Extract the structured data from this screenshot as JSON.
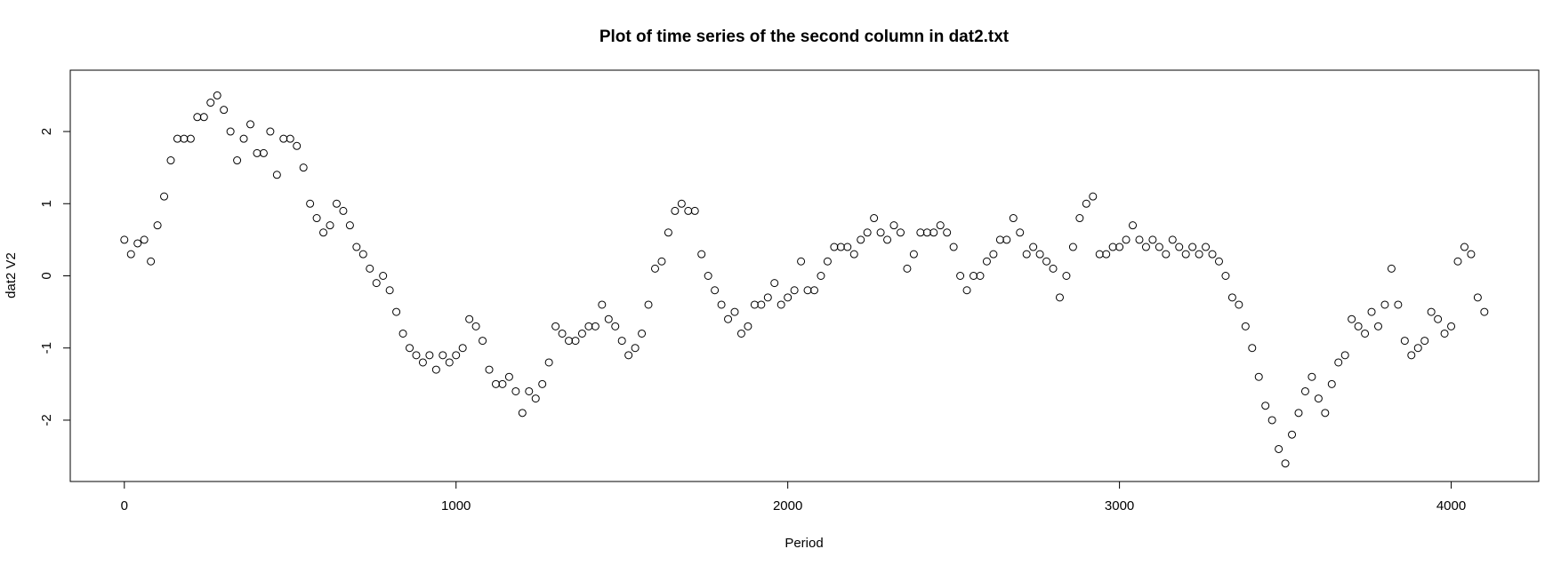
{
  "chart_data": {
    "type": "scatter",
    "title": "Plot of time series of the second column in dat2.txt",
    "x_label": "Period",
    "y_label": "dat2 V2",
    "xlim": [
      -163,
      4264
    ],
    "ylim": [
      -2.85,
      2.85
    ],
    "xticks": [
      0,
      1000,
      2000,
      3000,
      4000
    ],
    "yticks": [
      -2,
      -1,
      0,
      1,
      2
    ],
    "color": "#000000",
    "x": [
      0,
      20,
      40,
      60,
      80,
      100,
      120,
      140,
      160,
      180,
      200,
      220,
      240,
      260,
      280,
      300,
      320,
      340,
      360,
      380,
      400,
      420,
      440,
      460,
      480,
      500,
      520,
      540,
      560,
      580,
      600,
      620,
      640,
      660,
      680,
      700,
      720,
      740,
      760,
      780,
      800,
      820,
      840,
      860,
      880,
      900,
      920,
      940,
      960,
      980,
      1000,
      1020,
      1040,
      1060,
      1080,
      1100,
      1120,
      1140,
      1160,
      1180,
      1200,
      1220,
      1240,
      1260,
      1280,
      1300,
      1320,
      1340,
      1360,
      1380,
      1400,
      1420,
      1440,
      1460,
      1480,
      1500,
      1520,
      1540,
      1560,
      1580,
      1600,
      1620,
      1640,
      1660,
      1680,
      1700,
      1720,
      1740,
      1760,
      1780,
      1800,
      1820,
      1840,
      1860,
      1880,
      1900,
      1920,
      1940,
      1960,
      1980,
      2000,
      2020,
      2040,
      2060,
      2080,
      2100,
      2120,
      2140,
      2160,
      2180,
      2200,
      2220,
      2240,
      2260,
      2280,
      2300,
      2320,
      2340,
      2360,
      2380,
      2400,
      2420,
      2440,
      2460,
      2480,
      2500,
      2520,
      2540,
      2560,
      2580,
      2600,
      2620,
      2640,
      2660,
      2680,
      2700,
      2720,
      2740,
      2760,
      2780,
      2800,
      2820,
      2840,
      2860,
      2880,
      2900,
      2920,
      2940,
      2960,
      2980,
      3000,
      3020,
      3040,
      3060,
      3080,
      3100,
      3120,
      3140,
      3160,
      3180,
      3200,
      3220,
      3240,
      3260,
      3280,
      3300,
      3320,
      3340,
      3360,
      3380,
      3400,
      3420,
      3440,
      3460,
      3480,
      3500,
      3520,
      3540,
      3560,
      3580,
      3600,
      3620,
      3640,
      3660,
      3680,
      3700,
      3720,
      3740,
      3760,
      3780,
      3800,
      3820,
      3840,
      3860,
      3880,
      3900,
      3920,
      3940,
      3960,
      3980,
      4000,
      4020,
      4040,
      4060,
      4080,
      4100
    ],
    "values": [
      0.5,
      0.3,
      0.45,
      0.5,
      0.2,
      0.7,
      1.1,
      1.6,
      1.9,
      1.9,
      1.9,
      2.2,
      2.2,
      2.4,
      2.5,
      2.3,
      2.0,
      1.6,
      1.9,
      2.1,
      1.7,
      1.7,
      2.0,
      1.4,
      1.9,
      1.9,
      1.8,
      1.5,
      1.0,
      0.8,
      0.6,
      0.7,
      1.0,
      0.9,
      0.7,
      0.4,
      0.3,
      0.1,
      -0.1,
      0.0,
      -0.2,
      -0.5,
      -0.8,
      -1.0,
      -1.1,
      -1.2,
      -1.1,
      -1.3,
      -1.1,
      -1.2,
      -1.1,
      -1.0,
      -0.6,
      -0.7,
      -0.9,
      -1.3,
      -1.5,
      -1.5,
      -1.4,
      -1.6,
      -1.9,
      -1.6,
      -1.7,
      -1.5,
      -1.2,
      -0.7,
      -0.8,
      -0.9,
      -0.9,
      -0.8,
      -0.7,
      -0.7,
      -0.4,
      -0.6,
      -0.7,
      -0.9,
      -1.1,
      -1.0,
      -0.8,
      -0.4,
      0.1,
      0.2,
      0.6,
      0.9,
      1.0,
      0.9,
      0.9,
      0.3,
      0.0,
      -0.2,
      -0.4,
      -0.6,
      -0.5,
      -0.8,
      -0.7,
      -0.4,
      -0.4,
      -0.3,
      -0.1,
      -0.4,
      -0.3,
      -0.2,
      0.2,
      -0.2,
      -0.2,
      0.0,
      0.2,
      0.4,
      0.4,
      0.4,
      0.3,
      0.5,
      0.6,
      0.8,
      0.6,
      0.5,
      0.7,
      0.6,
      0.1,
      0.3,
      0.6,
      0.6,
      0.6,
      0.7,
      0.6,
      0.4,
      0.0,
      -0.2,
      0.0,
      0.0,
      0.2,
      0.3,
      0.5,
      0.5,
      0.8,
      0.6,
      0.3,
      0.4,
      0.3,
      0.2,
      0.1,
      -0.3,
      0.0,
      0.4,
      0.8,
      1.0,
      1.1,
      0.3,
      0.3,
      0.4,
      0.4,
      0.5,
      0.7,
      0.5,
      0.4,
      0.5,
      0.4,
      0.3,
      0.5,
      0.4,
      0.3,
      0.4,
      0.3,
      0.4,
      0.3,
      0.2,
      0.0,
      -0.3,
      -0.4,
      -0.7,
      -1.0,
      -1.4,
      -1.8,
      -2.0,
      -2.4,
      -2.6,
      -2.2,
      -1.9,
      -1.6,
      -1.4,
      -1.7,
      -1.9,
      -1.5,
      -1.2,
      -1.1,
      -0.6,
      -0.7,
      -0.8,
      -0.5,
      -0.7,
      -0.4,
      0.1,
      -0.4,
      -0.9,
      -1.1,
      -1.0,
      -0.9,
      -0.5,
      -0.6,
      -0.8,
      -0.7,
      0.2,
      0.4,
      0.3,
      -0.3,
      -0.5
    ]
  }
}
